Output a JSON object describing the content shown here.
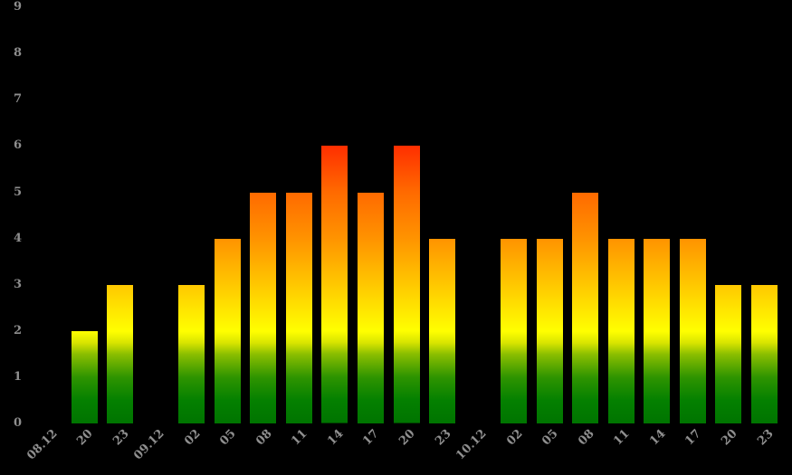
{
  "page": {
    "background": "#000000",
    "label_color": "#8e8e8e"
  },
  "chart_data": {
    "type": "bar",
    "title": "",
    "xlabel": "",
    "ylabel": "",
    "ylim": [
      0,
      9
    ],
    "y_ticks": [
      0,
      1,
      2,
      3,
      4,
      5,
      6,
      7,
      8,
      9
    ],
    "grid": false,
    "legend": false,
    "background": "#000000",
    "tick_label_color": "#8e8e8e",
    "x_slots": [
      {
        "label": "08.12",
        "kind": "date",
        "value": null
      },
      {
        "label": "20",
        "kind": "hour",
        "value": 2
      },
      {
        "label": "23",
        "kind": "hour",
        "value": 3
      },
      {
        "label": "09.12",
        "kind": "date",
        "value": null
      },
      {
        "label": "02",
        "kind": "hour",
        "value": 3
      },
      {
        "label": "05",
        "kind": "hour",
        "value": 4
      },
      {
        "label": "08",
        "kind": "hour",
        "value": 5
      },
      {
        "label": "11",
        "kind": "hour",
        "value": 5
      },
      {
        "label": "14",
        "kind": "hour",
        "value": 6
      },
      {
        "label": "17",
        "kind": "hour",
        "value": 5
      },
      {
        "label": "20",
        "kind": "hour",
        "value": 6
      },
      {
        "label": "23",
        "kind": "hour",
        "value": 4
      },
      {
        "label": "10.12",
        "kind": "date",
        "value": null
      },
      {
        "label": "02",
        "kind": "hour",
        "value": 4
      },
      {
        "label": "05",
        "kind": "hour",
        "value": 4
      },
      {
        "label": "08",
        "kind": "hour",
        "value": 5
      },
      {
        "label": "11",
        "kind": "hour",
        "value": 4
      },
      {
        "label": "14",
        "kind": "hour",
        "value": 4
      },
      {
        "label": "17",
        "kind": "hour",
        "value": 4
      },
      {
        "label": "20",
        "kind": "hour",
        "value": 3
      },
      {
        "label": "23",
        "kind": "hour",
        "value": 3
      }
    ],
    "bar_color_scale": [
      {
        "value": 0,
        "color": "#007400"
      },
      {
        "value": 0.5,
        "color": "#048000"
      },
      {
        "value": 1,
        "color": "#2e9400"
      },
      {
        "value": 1.5,
        "color": "#8abe00"
      },
      {
        "value": 1.75,
        "color": "#d8e400"
      },
      {
        "value": 2,
        "color": "#ffff00"
      },
      {
        "value": 3,
        "color": "#ffc800"
      },
      {
        "value": 4,
        "color": "#ff9300"
      },
      {
        "value": 5,
        "color": "#ff6a00"
      },
      {
        "value": 6,
        "color": "#ff2e00"
      },
      {
        "value": 9,
        "color": "#d40000"
      }
    ]
  }
}
